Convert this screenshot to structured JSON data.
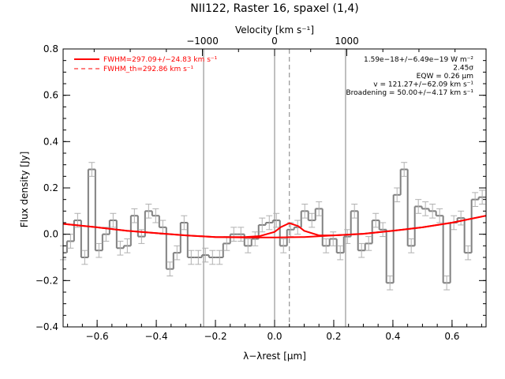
{
  "chart_data": {
    "type": "line",
    "title": "NII122, Raster 16, spaxel (1,4)",
    "xlabel": "λ−λrest [μm]",
    "ylabel": "Flux density [Jy]",
    "top_axis_label": "Velocity [km s⁻¹]",
    "xlim": [
      -0.715,
      0.715
    ],
    "ylim": [
      -0.4,
      0.8
    ],
    "top_xlim": [
      -2930,
      2930
    ],
    "x_ticks": [
      -0.6,
      -0.4,
      -0.2,
      0.0,
      0.2,
      0.4,
      0.6
    ],
    "x_tick_labels": [
      "−0.6",
      "−0.4",
      "−0.2",
      "0.0",
      "0.2",
      "0.4",
      "0.6"
    ],
    "y_ticks": [
      -0.4,
      -0.2,
      0.0,
      0.2,
      0.4,
      0.6,
      0.8
    ],
    "y_tick_labels": [
      "−0.4",
      "−0.2",
      "0.0",
      "0.2",
      "0.4",
      "0.6",
      "0.8"
    ],
    "top_ticks": [
      -1000,
      0,
      1000
    ],
    "top_tick_labels": [
      "−1000",
      "0",
      "1000"
    ],
    "vertical_lines": [
      {
        "x": -0.24,
        "style": "solid"
      },
      {
        "x": 0.0,
        "style": "solid"
      },
      {
        "x": 0.05,
        "style": "dashed"
      },
      {
        "x": 0.24,
        "style": "solid"
      }
    ],
    "legend": {
      "placement": "top-left",
      "entries": [
        {
          "label": "FWHM=297.09+/−24.83 km s⁻¹",
          "style": "solid",
          "color": "#ff0000"
        },
        {
          "label": "FWHM_th=292.86 km s⁻¹",
          "style": "dashed",
          "color": "#ff0000"
        }
      ]
    },
    "annotations": [
      "1.59e−18+/−6.49e−19 W m⁻²",
      "2.45σ",
      "EQW = 0.26 μm",
      "v = 121.27+/−62.09 km s⁻¹",
      "Broadening = 50.00+/−4.17 km s⁻¹"
    ],
    "series": [
      {
        "style": "histogram",
        "color": "#808080",
        "x": [
          -0.715,
          -0.69,
          -0.666,
          -0.642,
          -0.618,
          -0.594,
          -0.57,
          -0.546,
          -0.522,
          -0.498,
          -0.474,
          -0.45,
          -0.426,
          -0.402,
          -0.378,
          -0.354,
          -0.33,
          -0.306,
          -0.282,
          -0.258,
          -0.234,
          -0.21,
          -0.186,
          -0.162,
          -0.138,
          -0.114,
          -0.09,
          -0.066,
          -0.042,
          -0.018,
          0.006,
          0.03,
          0.054,
          0.078,
          0.102,
          0.126,
          0.15,
          0.174,
          0.198,
          0.222,
          0.246,
          0.27,
          0.294,
          0.318,
          0.342,
          0.366,
          0.39,
          0.414,
          0.438,
          0.462,
          0.486,
          0.51,
          0.534,
          0.558,
          0.582,
          0.606,
          0.63,
          0.654,
          0.678,
          0.702
        ],
        "y": [
          -0.08,
          -0.03,
          0.06,
          -0.1,
          0.28,
          -0.07,
          0.0,
          0.06,
          -0.06,
          -0.05,
          0.08,
          -0.01,
          0.1,
          0.08,
          0.03,
          -0.15,
          -0.08,
          0.05,
          -0.1,
          -0.1,
          -0.09,
          -0.1,
          -0.1,
          -0.04,
          0.0,
          0.0,
          -0.05,
          -0.02,
          0.04,
          0.05,
          0.06,
          -0.05,
          0.02,
          0.03,
          0.1,
          0.06,
          0.11,
          -0.05,
          -0.02,
          -0.08,
          -0.01,
          0.1,
          -0.07,
          -0.04,
          0.06,
          0.02,
          -0.21,
          0.17,
          0.28,
          -0.05,
          0.12,
          0.11,
          0.1,
          0.08,
          -0.21,
          0.05,
          0.07,
          -0.08,
          0.15,
          0.16
        ],
        "errors": [
          0.03,
          0.03,
          0.03,
          0.03,
          0.03,
          0.03,
          0.03,
          0.03,
          0.03,
          0.03,
          0.03,
          0.03,
          0.03,
          0.03,
          0.03,
          0.03,
          0.03,
          0.03,
          0.03,
          0.03,
          0.03,
          0.03,
          0.03,
          0.03,
          0.03,
          0.03,
          0.03,
          0.03,
          0.03,
          0.03,
          0.03,
          0.03,
          0.03,
          0.03,
          0.03,
          0.03,
          0.03,
          0.03,
          0.03,
          0.03,
          0.03,
          0.03,
          0.03,
          0.03,
          0.03,
          0.03,
          0.03,
          0.03,
          0.03,
          0.03,
          0.03,
          0.03,
          0.03,
          0.03,
          0.03,
          0.03,
          0.03,
          0.03,
          0.03,
          0.03
        ]
      },
      {
        "name": "FWHM=297.09+/−24.83 km s⁻¹",
        "style": "line",
        "color": "#ff0000",
        "x": [
          -0.715,
          -0.6,
          -0.5,
          -0.4,
          -0.3,
          -0.2,
          -0.1,
          -0.05,
          0.0,
          0.02,
          0.05,
          0.08,
          0.1,
          0.15,
          0.2,
          0.3,
          0.4,
          0.5,
          0.6,
          0.715
        ],
        "y": [
          0.045,
          0.03,
          0.015,
          0.005,
          -0.005,
          -0.012,
          -0.012,
          -0.008,
          0.01,
          0.03,
          0.048,
          0.035,
          0.015,
          -0.005,
          -0.005,
          0.002,
          0.015,
          0.03,
          0.05,
          0.08
        ]
      },
      {
        "name": "FWHM_th=292.86 km s⁻¹",
        "style": "line",
        "color": "#ff0000",
        "x": [
          -0.715,
          -0.6,
          -0.5,
          -0.4,
          -0.3,
          -0.2,
          -0.1,
          0.0,
          0.1,
          0.2,
          0.3,
          0.4,
          0.5,
          0.6,
          0.715
        ],
        "y": [
          0.045,
          0.03,
          0.015,
          0.005,
          -0.005,
          -0.012,
          -0.014,
          -0.014,
          -0.012,
          -0.005,
          0.002,
          0.015,
          0.03,
          0.05,
          0.08
        ]
      }
    ]
  }
}
